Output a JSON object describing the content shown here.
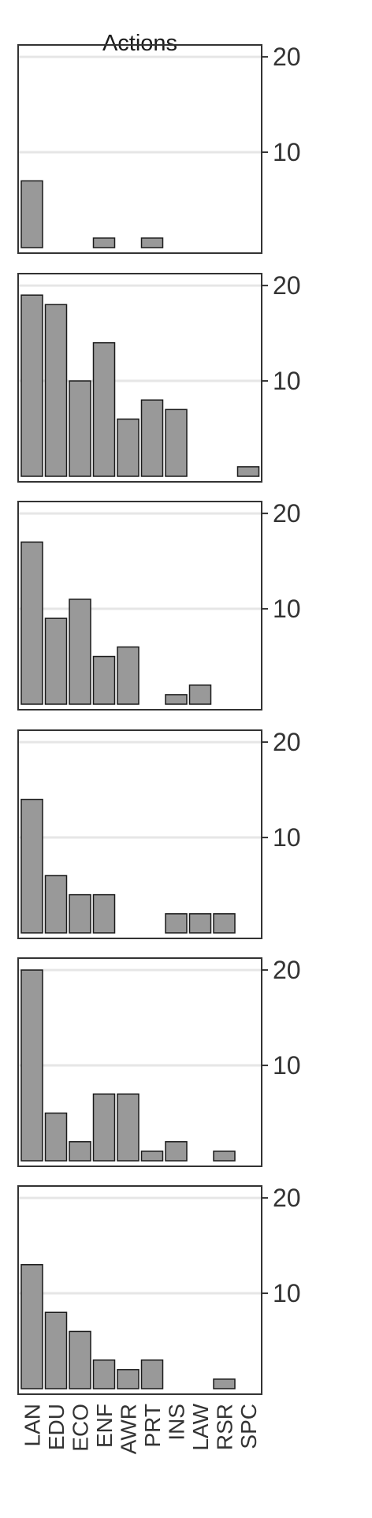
{
  "chart_data": {
    "type": "bar",
    "title": "Actions",
    "categories": [
      "LAN",
      "EDU",
      "ECO",
      "ENF",
      "AWR",
      "PRT",
      "INS",
      "LAW",
      "RSR",
      "SPC"
    ],
    "y_ticks": [
      10,
      20
    ],
    "ylim": [
      0,
      21
    ],
    "grid": true,
    "panels": [
      {
        "values": [
          7,
          0,
          0,
          1,
          0,
          1,
          0,
          0,
          0,
          0
        ]
      },
      {
        "values": [
          19,
          18,
          10,
          14,
          6,
          8,
          7,
          0,
          0,
          1
        ]
      },
      {
        "values": [
          17,
          9,
          11,
          5,
          6,
          0,
          1,
          2,
          0,
          0
        ]
      },
      {
        "values": [
          14,
          6,
          4,
          4,
          0,
          0,
          2,
          2,
          2,
          0
        ]
      },
      {
        "values": [
          20,
          5,
          2,
          7,
          7,
          1,
          2,
          0,
          1,
          0
        ]
      },
      {
        "values": [
          13,
          8,
          6,
          3,
          2,
          3,
          0,
          0,
          1,
          0
        ]
      }
    ],
    "colors": {
      "bar_fill": "#999999",
      "bar_stroke": "#1a1a1a",
      "grid": "#e6e6e6",
      "panel_border": "#333333",
      "axis_text": "#333333"
    }
  }
}
